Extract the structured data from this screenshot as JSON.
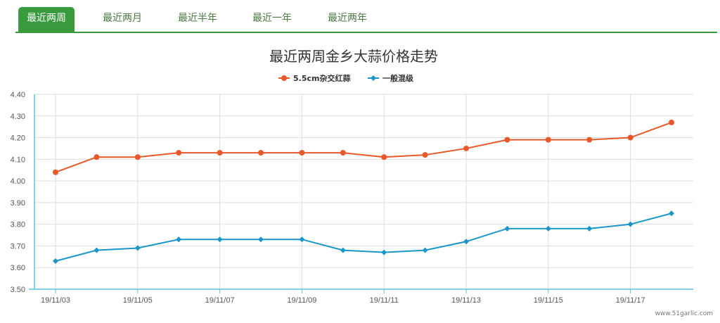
{
  "tabs": [
    {
      "label": "最近两周",
      "active": true
    },
    {
      "label": "最近两月"
    },
    {
      "label": "最近半年"
    },
    {
      "label": "最近一年"
    },
    {
      "label": "最近两年"
    }
  ],
  "watermark": "www.51garlic.com",
  "colors": {
    "tab_active": "#3a9a3e",
    "series1": "#e8582a",
    "series2": "#1a96c8"
  },
  "chart_data": {
    "type": "line",
    "title": "最近两周金乡大蒜价格走势",
    "legend_position": "top",
    "grid": true,
    "x": [
      "19/11/03",
      "19/11/04",
      "19/11/05",
      "19/11/06",
      "19/11/07",
      "19/11/08",
      "19/11/09",
      "19/11/10",
      "19/11/11",
      "19/11/12",
      "19/11/13",
      "19/11/14",
      "19/11/15",
      "19/11/16",
      "19/11/17",
      "19/11/18"
    ],
    "x_tick_labels": [
      "19/11/03",
      "19/11/05",
      "19/11/07",
      "19/11/09",
      "19/11/11",
      "19/11/13",
      "19/11/15",
      "19/11/17"
    ],
    "y_ticks": [
      "3.50",
      "3.60",
      "3.70",
      "3.80",
      "3.90",
      "4.00",
      "4.10",
      "4.20",
      "4.30",
      "4.40"
    ],
    "ylim": [
      3.5,
      4.4
    ],
    "series": [
      {
        "name": "5.5cm杂交红蒜",
        "marker": "circle",
        "values": [
          4.04,
          4.11,
          4.11,
          4.13,
          4.13,
          4.13,
          4.13,
          4.13,
          4.11,
          4.12,
          4.15,
          4.19,
          4.19,
          4.19,
          4.2,
          4.27
        ]
      },
      {
        "name": "一般混级",
        "marker": "diamond",
        "values": [
          3.63,
          3.68,
          3.69,
          3.73,
          3.73,
          3.73,
          3.73,
          3.68,
          3.67,
          3.68,
          3.72,
          3.78,
          3.78,
          3.78,
          3.8,
          3.85
        ]
      }
    ]
  }
}
